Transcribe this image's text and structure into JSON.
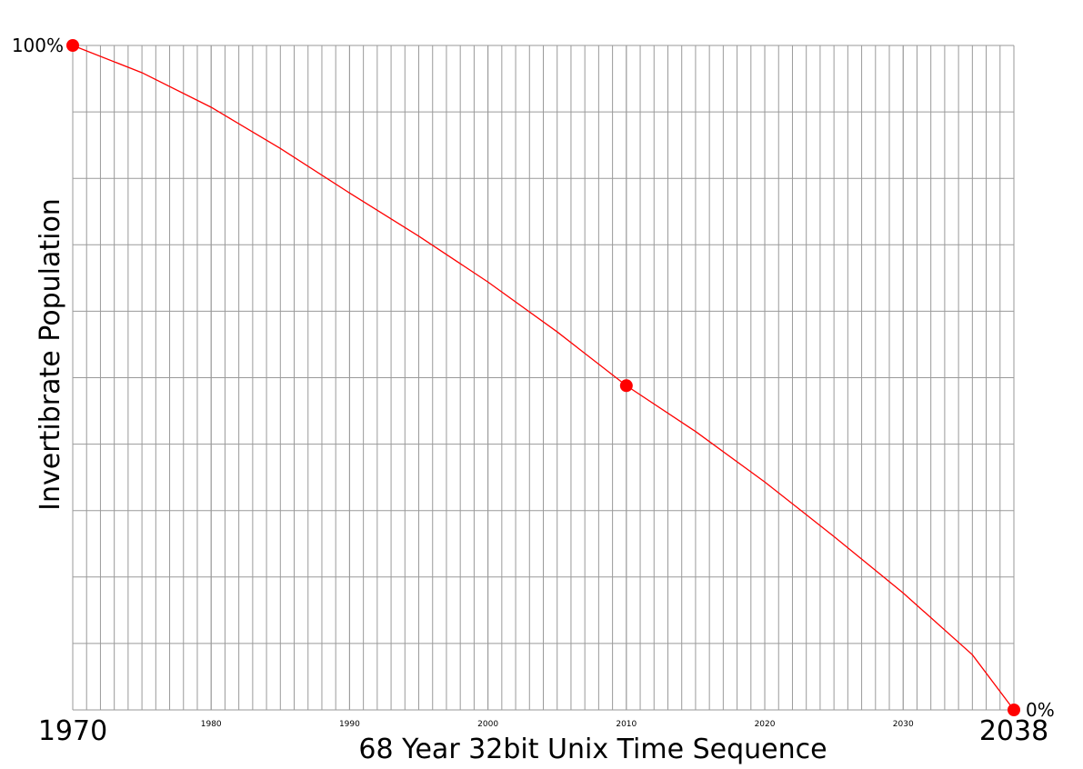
{
  "chart_data": {
    "type": "line",
    "x_label": "68 Year 32bit Unix Time Sequence",
    "y_label": "Invertibrate Population",
    "x": [
      1970,
      1975,
      1980,
      1985,
      1990,
      1995,
      2000,
      2005,
      2010,
      2015,
      2020,
      2025,
      2030,
      2035,
      2038
    ],
    "series": [
      {
        "color": "#ff0000",
        "values": [
          100,
          95.9,
          90.7,
          84.5,
          77.8,
          71.3,
          64.4,
          56.9,
          48.8,
          41.9,
          34.3,
          26.1,
          17.6,
          8.3,
          0
        ]
      }
    ],
    "points": {
      "x": [
        1970,
        2010,
        2038
      ],
      "values": [
        100,
        48.8,
        0
      ],
      "color": "#ff0000"
    },
    "xlim": [
      1970,
      2038
    ],
    "ylim": [
      0,
      100
    ],
    "xticks": [
      1970,
      1980,
      1990,
      2000,
      2010,
      2020,
      2030,
      2038
    ],
    "yticks": [
      {
        "value": 100,
        "label": "100%"
      },
      {
        "value": 0,
        "label": "0%"
      }
    ],
    "grid": true,
    "grid_x_step": 1,
    "grid_y_step": 10
  }
}
